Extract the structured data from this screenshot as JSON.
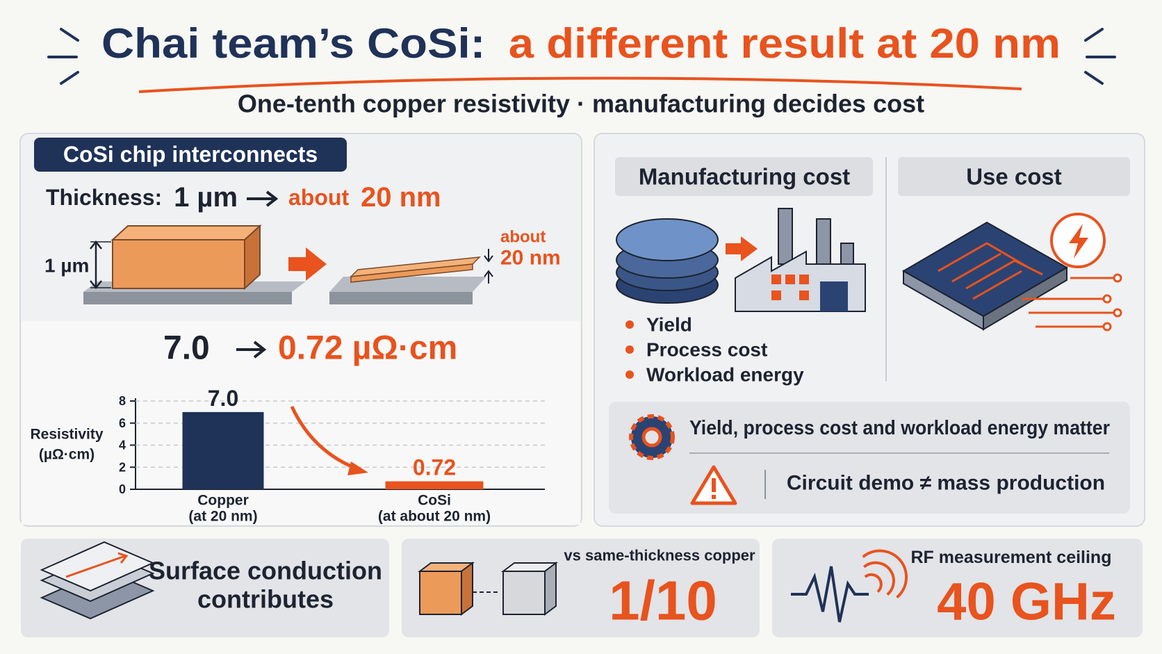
{
  "header": {
    "title_part1": "Chai team’s CoSi:",
    "title_part2": "a different result at 20 nm",
    "subtitle": "One-tenth copper resistivity · manufacturing decides cost"
  },
  "left_panel": {
    "label": "CoSi chip interconnects",
    "thickness_label": "Thickness:",
    "thickness_from": "1 µm",
    "thickness_to_prefix": "about",
    "thickness_to": "20 nm",
    "dim_thick": "1 µm",
    "dim_thin_prefix": "about",
    "dim_thin": "20 nm",
    "resistivity_from": "7.0",
    "resistivity_to": "0.72 µΩ·cm"
  },
  "chart_data": {
    "type": "bar",
    "y_label": "Resistivity",
    "y_unit": "(µΩ·cm)",
    "categories": [
      "Copper",
      "CoSi"
    ],
    "category_notes": [
      "(at 20 nm)",
      "(at about 20 nm)"
    ],
    "values": [
      7.0,
      0.72
    ],
    "value_labels": [
      "7.0",
      "0.72"
    ],
    "colors": [
      "#1f3258",
      "#e8531e"
    ],
    "ylim": [
      0,
      8
    ],
    "yticks": [
      0,
      2,
      4,
      6,
      8
    ],
    "grid": true
  },
  "right_panel": {
    "manufacturing_header": "Manufacturing cost",
    "use_header": "Use cost",
    "bullets": [
      "Yield",
      "Process cost",
      "Workload energy"
    ],
    "note": "Yield, process cost and workload energy matter",
    "warning": "Circuit demo ≠ mass production"
  },
  "cards": [
    {
      "lines": [
        "Surface conduction",
        "contributes"
      ]
    },
    {
      "caption": "vs same-thickness copper",
      "value": "1/10"
    },
    {
      "caption": "RF measurement ceiling",
      "value": "40 GHz"
    }
  ]
}
